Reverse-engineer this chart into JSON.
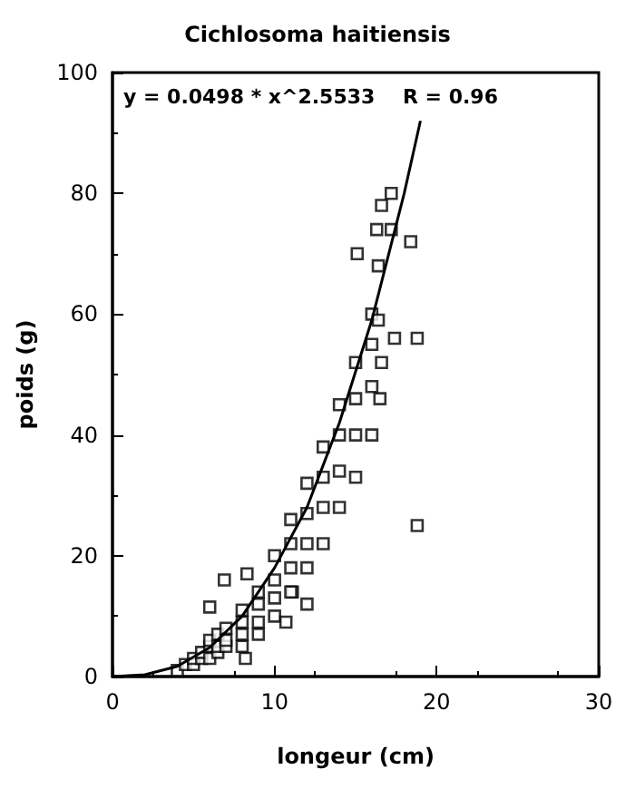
{
  "chart_data": {
    "type": "scatter",
    "title": "Cichlosoma haitiensis",
    "xlabel": "longeur (cm)",
    "ylabel": "poids (g)",
    "annotations": [
      "y = 0.0498 * x^2.5533    R = 0.96"
    ],
    "xlim": [
      0,
      30
    ],
    "xticks": [
      0,
      10,
      20,
      30
    ],
    "ylim": [
      0,
      100
    ],
    "yticks": [
      0,
      20,
      40,
      60,
      80,
      100
    ],
    "series": [
      {
        "marker": "square",
        "color": "#000000",
        "x": [
          4,
          4.5,
          5,
          5,
          5.5,
          5.5,
          6,
          6,
          6,
          6.5,
          6.5,
          6.5,
          7,
          7,
          7,
          6,
          6.9,
          8.3,
          8,
          8,
          8,
          8,
          8.2,
          9,
          9,
          9,
          9,
          10,
          10,
          10,
          10,
          10.7,
          11.1,
          11,
          11,
          11,
          11,
          12,
          12,
          12,
          12,
          12,
          13,
          13,
          13,
          13,
          14,
          14,
          14,
          14,
          15,
          15,
          15,
          15,
          16,
          16,
          16,
          16,
          15.1,
          16.3,
          16.4,
          16.4,
          16.5,
          16.6,
          16.6,
          17.2,
          17.2,
          17.4,
          18.4,
          18.8,
          18.8
        ],
        "values": [
          1,
          2,
          2,
          3,
          3,
          4,
          3,
          5,
          6,
          4,
          5,
          7,
          5,
          6,
          8,
          11.5,
          16,
          17,
          5,
          7,
          9,
          11,
          3,
          7,
          9,
          12,
          14,
          10,
          13,
          16,
          20,
          9,
          14,
          14,
          18,
          22,
          26,
          12,
          18,
          22,
          27,
          32,
          22,
          28,
          33,
          38,
          28,
          34,
          40,
          45,
          33,
          40,
          46,
          52,
          40,
          48,
          55,
          60,
          70,
          74,
          68,
          59,
          46,
          78,
          52,
          80,
          74,
          56,
          72,
          56,
          25
        ]
      },
      {
        "type": "line",
        "marker": "none",
        "color": "#000000",
        "x": [
          0,
          2,
          4,
          6,
          8,
          10,
          12,
          14,
          16,
          18,
          19
        ],
        "values": [
          0,
          0.3,
          1.7,
          4.8,
          10,
          18,
          28,
          42,
          59,
          80,
          92
        ]
      }
    ]
  }
}
